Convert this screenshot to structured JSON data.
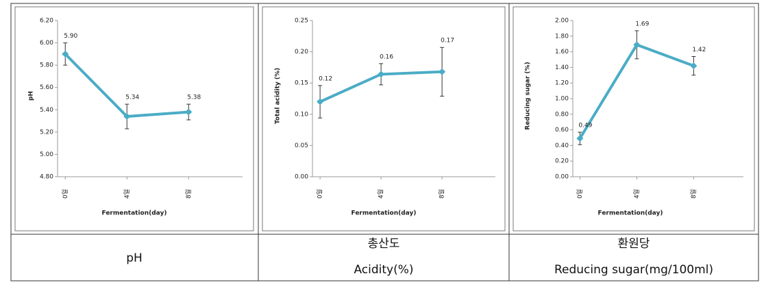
{
  "chart_data": [
    {
      "type": "line",
      "y_label": "pH",
      "x_label": "Fermentation(day)",
      "x": [
        0,
        4,
        8
      ],
      "xlim": [
        -0.5,
        11.5
      ],
      "xticks": [
        {
          "value": 0,
          "label": "0일"
        },
        {
          "value": 4,
          "label": "4일"
        },
        {
          "value": 8,
          "label": "8일"
        }
      ],
      "ylim": [
        4.8,
        6.2
      ],
      "yticks": [
        {
          "value": 4.8,
          "label": "4.80"
        },
        {
          "value": 5.0,
          "label": "5.00"
        },
        {
          "value": 5.2,
          "label": "5.20"
        },
        {
          "value": 5.4,
          "label": "5.40"
        },
        {
          "value": 5.6,
          "label": "5.60"
        },
        {
          "value": 5.8,
          "label": "5.80"
        },
        {
          "value": 6.0,
          "label": "6.00"
        },
        {
          "value": 6.2,
          "label": "6.20"
        }
      ],
      "color": "#4bacc6",
      "values": [
        5.9,
        5.34,
        5.38
      ],
      "value_labels": [
        "5.90",
        "5.34",
        "5.38"
      ],
      "errors": [
        0.1,
        0.11,
        0.07
      ]
    },
    {
      "type": "line",
      "y_label": "Total acidity (%)",
      "x_label": "Fermentation(day)",
      "x": [
        0,
        4,
        8
      ],
      "xlim": [
        -0.5,
        11.5
      ],
      "xticks": [
        {
          "value": 0,
          "label": "0일"
        },
        {
          "value": 4,
          "label": "4일"
        },
        {
          "value": 8,
          "label": "8일"
        }
      ],
      "ylim": [
        0,
        0.25
      ],
      "yticks": [
        {
          "value": 0,
          "label": "0.00"
        },
        {
          "value": 0.05,
          "label": "0.05"
        },
        {
          "value": 0.1,
          "label": "0.10"
        },
        {
          "value": 0.15,
          "label": "0.15"
        },
        {
          "value": 0.2,
          "label": "0.20"
        },
        {
          "value": 0.25,
          "label": "0.25"
        }
      ],
      "color": "#4bacc6",
      "values": [
        0.12,
        0.164,
        0.168
      ],
      "value_labels": [
        "0.12",
        "0.16",
        "0.17"
      ],
      "errors": [
        0.026,
        0.017,
        0.039
      ]
    },
    {
      "type": "line",
      "y_label": "Reducing sugar  (%)",
      "x_label": "Fermentation(day)",
      "x": [
        0,
        4,
        8
      ],
      "xlim": [
        -0.5,
        11.5
      ],
      "xticks": [
        {
          "value": 0,
          "label": "0일"
        },
        {
          "value": 4,
          "label": "4일"
        },
        {
          "value": 8,
          "label": "8일"
        }
      ],
      "ylim": [
        0,
        2
      ],
      "yticks": [
        {
          "value": 0,
          "label": "0.00"
        },
        {
          "value": 0.2,
          "label": "0.20"
        },
        {
          "value": 0.4,
          "label": "0.40"
        },
        {
          "value": 0.6,
          "label": "0.60"
        },
        {
          "value": 0.8,
          "label": "0.80"
        },
        {
          "value": 1.0,
          "label": "1.00"
        },
        {
          "value": 1.2,
          "label": "1.20"
        },
        {
          "value": 1.4,
          "label": "1.40"
        },
        {
          "value": 1.6,
          "label": "1.60"
        },
        {
          "value": 1.8,
          "label": "1.80"
        },
        {
          "value": 2.0,
          "label": "2.00"
        }
      ],
      "color": "#4bacc6",
      "values": [
        0.49,
        1.69,
        1.42
      ],
      "errors": [
        0.08,
        0.18,
        0.12
      ]
    }
  ],
  "captions": [
    [
      "pH"
    ],
    [
      "총산도",
      "Acidity(%)"
    ],
    [
      "환원당",
      "Reducing  sugar(mg/100ml)"
    ]
  ]
}
